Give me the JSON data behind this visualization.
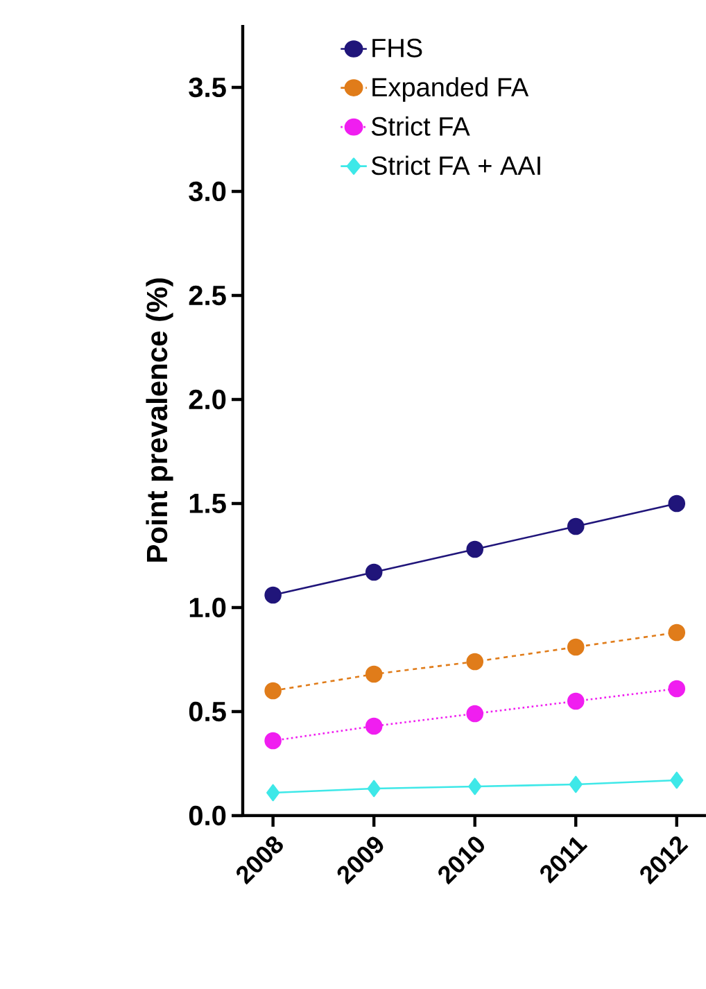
{
  "chart_data": {
    "type": "line",
    "ylabel": "Point prevalence (%)",
    "categories": [
      "2008",
      "2009",
      "2010",
      "2011",
      "2012"
    ],
    "ylim": [
      0,
      3.8
    ],
    "yticks": [
      {
        "value": 0,
        "label": "0.0"
      },
      {
        "value": 0.5,
        "label": "0.5"
      },
      {
        "value": 1,
        "label": "1.0"
      },
      {
        "value": 1.5,
        "label": "1.5"
      },
      {
        "value": 2,
        "label": "2.0"
      },
      {
        "value": 2.5,
        "label": "2.5"
      },
      {
        "value": 3,
        "label": "3.0"
      },
      {
        "value": 3.5,
        "label": "3.5"
      }
    ],
    "grid": false,
    "legend": "top",
    "series": [
      {
        "name": "FHS",
        "color": "#20157a",
        "marker": "circle",
        "line_style": "solid",
        "values": [
          1.06,
          1.17,
          1.28,
          1.39,
          1.5
        ]
      },
      {
        "name": "Expanded FA",
        "color": "#e07c1a",
        "marker": "circle",
        "line_style": "dashed",
        "values": [
          0.6,
          0.68,
          0.74,
          0.81,
          0.88
        ]
      },
      {
        "name": "Strict FA",
        "color": "#f01ef0",
        "marker": "circle",
        "line_style": "dotted",
        "values": [
          0.36,
          0.43,
          0.49,
          0.55,
          0.61
        ]
      },
      {
        "name": "Strict FA + AAI",
        "color": "#3ee8e8",
        "marker": "diamond",
        "line_style": "solid",
        "values": [
          0.11,
          0.13,
          0.14,
          0.15,
          0.17
        ]
      }
    ]
  }
}
